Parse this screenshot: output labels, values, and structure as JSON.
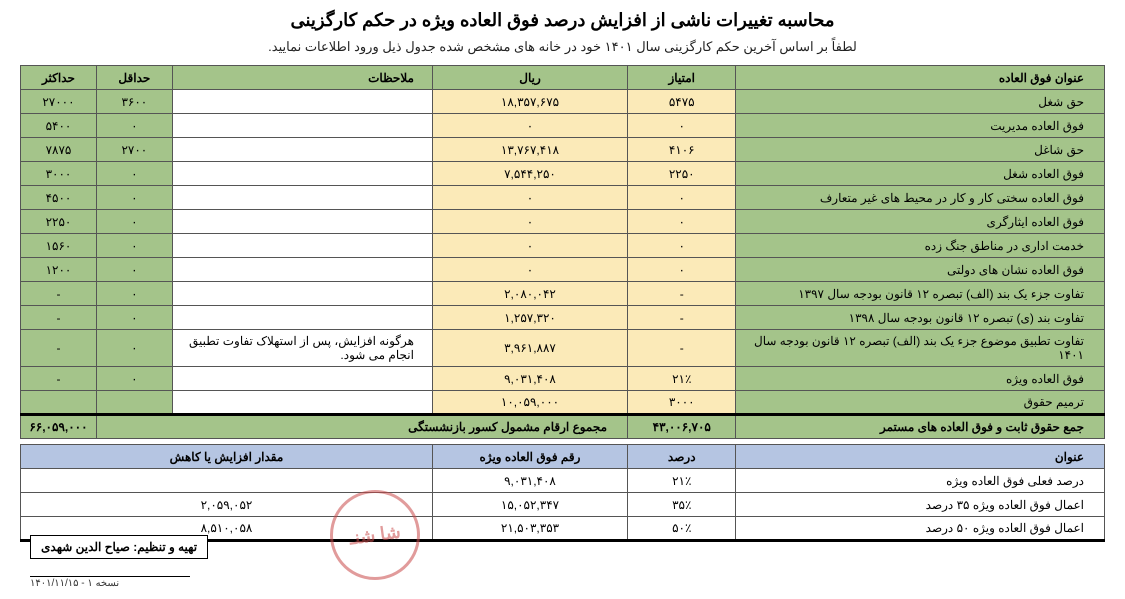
{
  "title": "محاسبه تغییرات ناشی از افزایش درصد فوق العاده ویژه در حکم کارگزینی",
  "subtitle": "لطفاً بر اساس آخرین حکم کارگزینی سال ۱۴۰۱ خود در خانه های مشخص شده جدول ذیل ورود اطلاعات نمایید.",
  "headers1": {
    "title": "عنوان فوق العاده",
    "score": "امتیاز",
    "rial": "ریال",
    "notes": "ملاحظات",
    "min": "حداقل",
    "max": "حداکثر"
  },
  "rows": [
    {
      "title": "حق شغل",
      "score": "۵۴۷۵",
      "rial": "۱۸,۳۵۷,۶۷۵",
      "notes": "",
      "min": "۳۶۰۰",
      "max": "۲۷۰۰۰",
      "editable": true
    },
    {
      "title": "فوق العاده مدیریت",
      "score": "۰",
      "rial": "۰",
      "notes": "",
      "min": "۰",
      "max": "۵۴۰۰",
      "editable": true
    },
    {
      "title": "حق شاغل",
      "score": "۴۱۰۶",
      "rial": "۱۳,۷۶۷,۴۱۸",
      "notes": "",
      "min": "۲۷۰۰",
      "max": "۷۸۷۵",
      "editable": true
    },
    {
      "title": "فوق العاده شغل",
      "score": "۲۲۵۰",
      "rial": "۷,۵۴۴,۲۵۰",
      "notes": "",
      "min": "۰",
      "max": "۳۰۰۰",
      "editable": true
    },
    {
      "title": "فوق العاده سختی کار و کار در محیط های غیر متعارف",
      "score": "۰",
      "rial": "۰",
      "notes": "",
      "min": "۰",
      "max": "۴۵۰۰",
      "editable": true
    },
    {
      "title": "فوق العاده ایثارگری",
      "score": "۰",
      "rial": "۰",
      "notes": "",
      "min": "۰",
      "max": "۲۲۵۰",
      "editable": true
    },
    {
      "title": "خدمت اداری در مناطق جنگ زده",
      "score": "۰",
      "rial": "۰",
      "notes": "",
      "min": "۰",
      "max": "۱۵۶۰",
      "editable": true
    },
    {
      "title": "فوق العاده نشان های دولتی",
      "score": "۰",
      "rial": "۰",
      "notes": "",
      "min": "۰",
      "max": "۱۲۰۰",
      "editable": true
    },
    {
      "title": "تفاوت جزء یک بند (الف) تبصره ۱۲ قانون بودجه سال ۱۳۹۷",
      "score": "-",
      "rial": "۲,۰۸۰,۰۴۲",
      "notes": "",
      "min": "۰",
      "max": "-",
      "editable": "rialonly"
    },
    {
      "title": "تفاوت بند (ی) تبصره ۱۲ قانون بودجه سال ۱۳۹۸",
      "score": "-",
      "rial": "۱,۲۵۷,۳۲۰",
      "notes": "",
      "min": "۰",
      "max": "-",
      "editable": "rialonly"
    },
    {
      "title": "تفاوت تطبیق موضوع جزء یک بند (الف) تبصره ۱۲ قانون بودجه سال ۱۴۰۱",
      "score": "-",
      "rial": "۳,۹۶۱,۸۸۷",
      "notes": "هرگونه افزایش، پس از استهلاک تفاوت تطبیق انجام می شود.",
      "min": "۰",
      "max": "-",
      "editable": "rialonly"
    },
    {
      "title": "فوق العاده ویژه",
      "score": "۲۱٪",
      "rial": "۹,۰۳۱,۴۰۸",
      "notes": "",
      "min": "۰",
      "max": "-",
      "editable": true
    },
    {
      "title": "ترمیم حقوق",
      "score": "۳۰۰۰",
      "rial": "۱۰,۰۵۹,۰۰۰",
      "notes": "",
      "min": "",
      "max": "",
      "editable": "locked"
    }
  ],
  "sum": {
    "label_right": "جمع حقوق ثابت و فوق العاده های مستمر",
    "value_right": "۴۳,۰۰۶,۷۰۵",
    "label_left": "مجموع ارقام مشمول کسور بازنشستگی",
    "value_left": "۶۶,۰۵۹,۰۰۰"
  },
  "headers2": {
    "title": "عنوان",
    "pct": "درصد",
    "amount": "رقم فوق العاده ویژه",
    "delta": "مقدار افزایش یا کاهش"
  },
  "rows2": [
    {
      "title": "درصد فعلی فوق العاده ویژه",
      "pct": "۲۱٪",
      "amount": "۹,۰۳۱,۴۰۸",
      "delta": ""
    },
    {
      "title": "اعمال فوق العاده ویژه ۳۵ درصد",
      "pct": "۳۵٪",
      "amount": "۱۵,۰۵۲,۳۴۷",
      "delta": "۲,۰۵۹,۰۵۲"
    },
    {
      "title": "اعمال فوق العاده ویژه ۵۰ درصد",
      "pct": "۵۰٪",
      "amount": "۲۱,۵۰۳,۳۵۳",
      "delta": "۸,۵۱۰,۰۵۸"
    }
  ],
  "stamp": "شا\nشنـ",
  "credit": "تهیه و تنظیم: صیاح الدین شهدی",
  "version": "نسخه ۱ - ۱۴۰۱/۱۱/۱۵",
  "colors": {
    "green": "#a4c48a",
    "yellow": "#fbeab8",
    "blue": "#b5c5e2",
    "stamp": "#c94b4b"
  }
}
